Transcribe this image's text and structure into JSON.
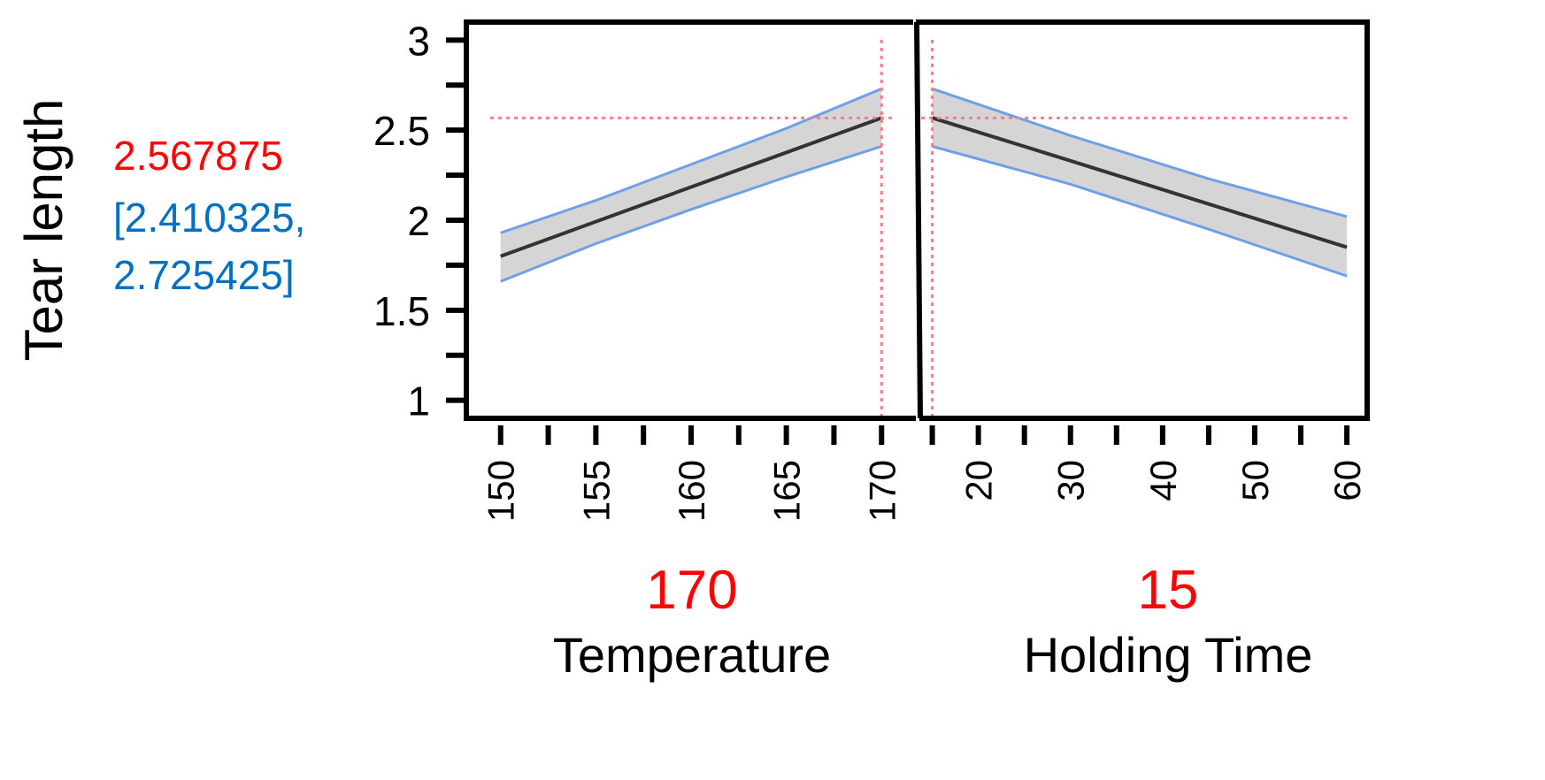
{
  "chart_data": {
    "type": "line",
    "ylabel": "Tear length",
    "prediction": {
      "value": "2.567875",
      "ci_line1": "[2.410325,",
      "ci_line2": "2.725425]"
    },
    "ylim": [
      0.9,
      3.1
    ],
    "y_ticks": [
      "1",
      "1.5",
      "2",
      "2.5",
      "3"
    ],
    "y_tick_values": [
      1,
      1.5,
      2,
      2.5,
      3
    ],
    "reference_y": 2.567875,
    "colors": {
      "prediction": "#ff0000",
      "interval": "#0070c0",
      "band_fill": "#d3d3d3",
      "band_edge": "#6f9fe8",
      "line": "#333333",
      "reference": "#ff7b8a"
    },
    "panels": [
      {
        "xlabel": "Temperature",
        "current": "170",
        "current_x": 170,
        "xlim": [
          148.2,
          171.8
        ],
        "x_ticks": [
          "150",
          "155",
          "160",
          "165",
          "170"
        ],
        "x_tick_values": [
          150,
          155,
          160,
          165,
          170
        ],
        "x": [
          150,
          155,
          160,
          165,
          170
        ],
        "y": [
          1.8,
          1.992,
          2.184,
          2.376,
          2.568
        ],
        "lower": [
          1.66,
          1.87,
          2.06,
          2.24,
          2.41
        ],
        "upper": [
          1.93,
          2.11,
          2.31,
          2.51,
          2.73
        ]
      },
      {
        "xlabel": "Holding Time",
        "current": "15",
        "current_x": 15,
        "xlim": [
          13.6,
          62.2
        ],
        "x_ticks": [
          "20",
          "30",
          "40",
          "50",
          "60"
        ],
        "x_tick_values": [
          20,
          30,
          40,
          50,
          60
        ],
        "x": [
          15,
          30,
          45,
          60
        ],
        "y": [
          2.568,
          2.33,
          2.09,
          1.85
        ],
        "lower": [
          2.41,
          2.2,
          1.95,
          1.69
        ],
        "upper": [
          2.73,
          2.47,
          2.23,
          2.02
        ]
      }
    ]
  }
}
